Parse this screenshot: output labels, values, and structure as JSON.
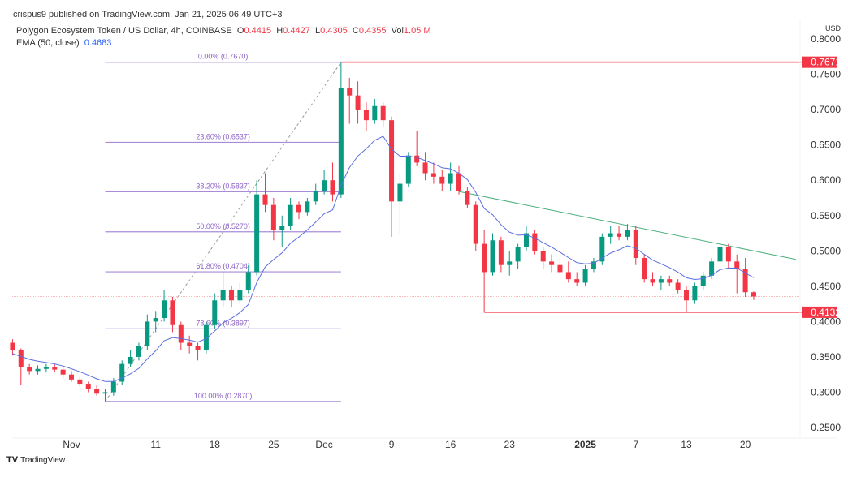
{
  "header": {
    "publisher": "crispus9 published on TradingView.com, Jan 21, 2025 06:49 UTC+3",
    "symbol": "Polygon Ecosystem Token / US Dollar, 4h, COINBASE",
    "ohlc": {
      "o_label": "O",
      "o": "0.4415",
      "h_label": "H",
      "h": "0.4427",
      "l_label": "L",
      "l": "0.4305",
      "c_label": "C",
      "c": "0.4355",
      "vol_label": "Vol",
      "vol": "1.05 M"
    },
    "ema_label": "EMA (50, close)",
    "ema_value": "0.4683"
  },
  "watermark": "TradingView",
  "chart_data": {
    "type": "candlestick",
    "currency": "USD",
    "ylim": [
      0.25,
      0.8
    ],
    "y_ticks": [
      "0.8000",
      "0.7500",
      "0.7000",
      "0.6500",
      "0.6000",
      "0.5500",
      "0.5000",
      "0.4500",
      "0.4000",
      "0.3500",
      "0.3000",
      "0.2500"
    ],
    "x_ticks": [
      {
        "label": "Nov",
        "date": "2024-11-01"
      },
      {
        "label": "11",
        "date": "2024-11-11"
      },
      {
        "label": "18",
        "date": "2024-11-18"
      },
      {
        "label": "25",
        "date": "2024-11-25"
      },
      {
        "label": "Dec",
        "date": "2024-12-01"
      },
      {
        "label": "9",
        "date": "2024-12-09"
      },
      {
        "label": "16",
        "date": "2024-12-16"
      },
      {
        "label": "23",
        "date": "2024-12-23"
      },
      {
        "label": "2025",
        "date": "2025-01-01",
        "bold": true
      },
      {
        "label": "7",
        "date": "2025-01-07"
      },
      {
        "label": "13",
        "date": "2025-01-13"
      },
      {
        "label": "20",
        "date": "2025-01-20"
      }
    ],
    "colors": {
      "up": "#089981",
      "down": "#f23645",
      "ema": "#5b6ee1",
      "fib": "#a98bd9",
      "level": "#f23645",
      "trendline": "#4caf7d",
      "last_price": "#f7a4aa"
    },
    "candles": [
      [
        "2024-10-25",
        0.37,
        0.375,
        0.352,
        0.36
      ],
      [
        "2024-10-26",
        0.36,
        0.362,
        0.31,
        0.335
      ],
      [
        "2024-10-27",
        0.335,
        0.34,
        0.325,
        0.33
      ],
      [
        "2024-10-28",
        0.33,
        0.338,
        0.325,
        0.333
      ],
      [
        "2024-10-29",
        0.333,
        0.34,
        0.328,
        0.335
      ],
      [
        "2024-10-30",
        0.335,
        0.34,
        0.328,
        0.332
      ],
      [
        "2024-10-31",
        0.332,
        0.336,
        0.32,
        0.325
      ],
      [
        "2024-11-01",
        0.325,
        0.33,
        0.315,
        0.318
      ],
      [
        "2024-11-02",
        0.318,
        0.322,
        0.308,
        0.312
      ],
      [
        "2024-11-03",
        0.312,
        0.315,
        0.3,
        0.305
      ],
      [
        "2024-11-04",
        0.305,
        0.31,
        0.295,
        0.298
      ],
      [
        "2024-11-05",
        0.298,
        0.305,
        0.287,
        0.3
      ],
      [
        "2024-11-06",
        0.3,
        0.32,
        0.295,
        0.315
      ],
      [
        "2024-11-07",
        0.315,
        0.345,
        0.31,
        0.34
      ],
      [
        "2024-11-08",
        0.34,
        0.36,
        0.335,
        0.35
      ],
      [
        "2024-11-09",
        0.35,
        0.37,
        0.345,
        0.365
      ],
      [
        "2024-11-10",
        0.365,
        0.41,
        0.36,
        0.4
      ],
      [
        "2024-11-11",
        0.4,
        0.415,
        0.385,
        0.405
      ],
      [
        "2024-11-12",
        0.405,
        0.445,
        0.4,
        0.43
      ],
      [
        "2024-11-13",
        0.43,
        0.435,
        0.385,
        0.395
      ],
      [
        "2024-11-14",
        0.395,
        0.4,
        0.36,
        0.37
      ],
      [
        "2024-11-15",
        0.37,
        0.38,
        0.355,
        0.365
      ],
      [
        "2024-11-16",
        0.365,
        0.37,
        0.345,
        0.36
      ],
      [
        "2024-11-17",
        0.36,
        0.4,
        0.355,
        0.395
      ],
      [
        "2024-11-18",
        0.395,
        0.44,
        0.39,
        0.43
      ],
      [
        "2024-11-19",
        0.43,
        0.47,
        0.42,
        0.445
      ],
      [
        "2024-11-20",
        0.445,
        0.45,
        0.42,
        0.43
      ],
      [
        "2024-11-21",
        0.43,
        0.455,
        0.425,
        0.445
      ],
      [
        "2024-11-22",
        0.445,
        0.48,
        0.44,
        0.47
      ],
      [
        "2024-11-23",
        0.47,
        0.6,
        0.465,
        0.58
      ],
      [
        "2024-11-24",
        0.58,
        0.61,
        0.555,
        0.565
      ],
      [
        "2024-11-25",
        0.565,
        0.575,
        0.515,
        0.53
      ],
      [
        "2024-11-26",
        0.53,
        0.55,
        0.505,
        0.535
      ],
      [
        "2024-11-27",
        0.535,
        0.575,
        0.53,
        0.565
      ],
      [
        "2024-11-28",
        0.565,
        0.57,
        0.545,
        0.555
      ],
      [
        "2024-11-29",
        0.555,
        0.575,
        0.55,
        0.57
      ],
      [
        "2024-11-30",
        0.57,
        0.595,
        0.565,
        0.585
      ],
      [
        "2024-12-01",
        0.585,
        0.615,
        0.58,
        0.6
      ],
      [
        "2024-12-02",
        0.6,
        0.625,
        0.57,
        0.58
      ],
      [
        "2024-12-03",
        0.58,
        0.767,
        0.575,
        0.73
      ],
      [
        "2024-12-04",
        0.73,
        0.745,
        0.68,
        0.72
      ],
      [
        "2024-12-05",
        0.72,
        0.74,
        0.68,
        0.7
      ],
      [
        "2024-12-06",
        0.7,
        0.71,
        0.67,
        0.685
      ],
      [
        "2024-12-07",
        0.685,
        0.715,
        0.68,
        0.705
      ],
      [
        "2024-12-08",
        0.705,
        0.71,
        0.675,
        0.685
      ],
      [
        "2024-12-09",
        0.685,
        0.69,
        0.52,
        0.57
      ],
      [
        "2024-12-10",
        0.57,
        0.61,
        0.525,
        0.595
      ],
      [
        "2024-12-11",
        0.595,
        0.64,
        0.59,
        0.635
      ],
      [
        "2024-12-12",
        0.635,
        0.67,
        0.62,
        0.625
      ],
      [
        "2024-12-13",
        0.625,
        0.64,
        0.6,
        0.61
      ],
      [
        "2024-12-14",
        0.61,
        0.625,
        0.595,
        0.605
      ],
      [
        "2024-12-15",
        0.605,
        0.615,
        0.585,
        0.595
      ],
      [
        "2024-12-16",
        0.595,
        0.625,
        0.585,
        0.61
      ],
      [
        "2024-12-17",
        0.61,
        0.62,
        0.58,
        0.585
      ],
      [
        "2024-12-18",
        0.585,
        0.59,
        0.56,
        0.565
      ],
      [
        "2024-12-19",
        0.565,
        0.57,
        0.5,
        0.51
      ],
      [
        "2024-12-20",
        0.51,
        0.53,
        0.4132,
        0.47
      ],
      [
        "2024-12-21",
        0.47,
        0.525,
        0.465,
        0.515
      ],
      [
        "2024-12-22",
        0.515,
        0.52,
        0.47,
        0.48
      ],
      [
        "2024-12-23",
        0.48,
        0.5,
        0.465,
        0.485
      ],
      [
        "2024-12-24",
        0.485,
        0.51,
        0.475,
        0.505
      ],
      [
        "2024-12-25",
        0.505,
        0.535,
        0.5,
        0.525
      ],
      [
        "2024-12-26",
        0.525,
        0.53,
        0.495,
        0.5
      ],
      [
        "2024-12-27",
        0.5,
        0.505,
        0.475,
        0.485
      ],
      [
        "2024-12-28",
        0.485,
        0.495,
        0.47,
        0.48
      ],
      [
        "2024-12-29",
        0.48,
        0.49,
        0.465,
        0.47
      ],
      [
        "2024-12-30",
        0.47,
        0.485,
        0.455,
        0.46
      ],
      [
        "2024-12-31",
        0.46,
        0.47,
        0.45,
        0.455
      ],
      [
        "2025-01-01",
        0.455,
        0.48,
        0.45,
        0.475
      ],
      [
        "2025-01-02",
        0.475,
        0.49,
        0.47,
        0.485
      ],
      [
        "2025-01-03",
        0.485,
        0.525,
        0.48,
        0.52
      ],
      [
        "2025-01-04",
        0.52,
        0.535,
        0.51,
        0.525
      ],
      [
        "2025-01-05",
        0.525,
        0.535,
        0.515,
        0.52
      ],
      [
        "2025-01-06",
        0.52,
        0.538,
        0.515,
        0.53
      ],
      [
        "2025-01-07",
        0.53,
        0.535,
        0.48,
        0.49
      ],
      [
        "2025-01-08",
        0.49,
        0.495,
        0.455,
        0.46
      ],
      [
        "2025-01-09",
        0.46,
        0.47,
        0.45,
        0.455
      ],
      [
        "2025-01-10",
        0.455,
        0.465,
        0.445,
        0.46
      ],
      [
        "2025-01-11",
        0.46,
        0.465,
        0.45,
        0.455
      ],
      [
        "2025-01-12",
        0.455,
        0.46,
        0.44,
        0.445
      ],
      [
        "2025-01-13",
        0.445,
        0.45,
        0.4132,
        0.43
      ],
      [
        "2025-01-14",
        0.43,
        0.455,
        0.425,
        0.45
      ],
      [
        "2025-01-15",
        0.45,
        0.47,
        0.445,
        0.465
      ],
      [
        "2025-01-16",
        0.465,
        0.49,
        0.46,
        0.485
      ],
      [
        "2025-01-17",
        0.485,
        0.517,
        0.48,
        0.505
      ],
      [
        "2025-01-18",
        0.505,
        0.51,
        0.475,
        0.485
      ],
      [
        "2025-01-19",
        0.485,
        0.495,
        0.44,
        0.475
      ],
      [
        "2025-01-20",
        0.475,
        0.49,
        0.435,
        0.4415
      ],
      [
        "2025-01-21",
        0.4415,
        0.4427,
        0.4305,
        0.4355
      ]
    ],
    "fibonacci": {
      "from": {
        "date": "2024-11-05",
        "price": 0.287
      },
      "to": {
        "date": "2024-12-03",
        "price": 0.767
      },
      "levels": [
        {
          "label": "0.00% (0.7670)",
          "price": 0.767
        },
        {
          "label": "23.60% (0.6537)",
          "price": 0.6537
        },
        {
          "label": "38.20% (0.5837)",
          "price": 0.5837
        },
        {
          "label": "50.00% (0.5270)",
          "price": 0.527
        },
        {
          "label": "61.80% (0.4704)",
          "price": 0.4704
        },
        {
          "label": "78.60% (0.3897)",
          "price": 0.3897
        },
        {
          "label": "100.00% (0.2870)",
          "price": 0.287
        }
      ]
    },
    "horizontal_levels": [
      {
        "label": "0.7671",
        "price": 0.7671,
        "from": "2024-12-03"
      },
      {
        "label": "0.4132",
        "price": 0.4132,
        "from": "2024-12-20"
      }
    ],
    "trendline": {
      "from": {
        "date": "2024-12-17",
        "price": 0.584
      },
      "to": {
        "date": "2025-01-26",
        "price": 0.488
      }
    },
    "last_price": 0.4355
  }
}
